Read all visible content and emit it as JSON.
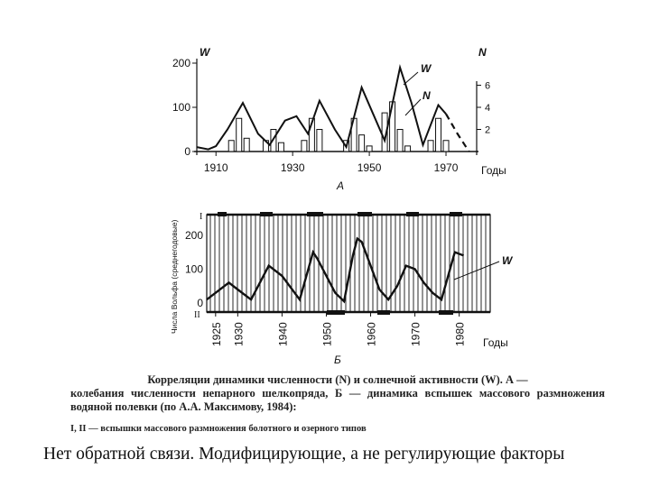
{
  "chart_data": [
    {
      "type": "line",
      "panel_label": "А",
      "y_left_label": "W",
      "y_right_label": "N",
      "x_unit_label": "Годы",
      "xlim": [
        1905,
        1978
      ],
      "ylim": [
        0,
        200
      ],
      "y2lim": [
        0,
        8
      ],
      "x_ticks": [
        1910,
        1930,
        1950,
        1970
      ],
      "y_ticks": [
        0,
        100,
        200
      ],
      "y2_ticks": [
        2,
        4,
        6
      ],
      "series": [
        {
          "name": "W",
          "style": "solid",
          "x": [
            1905,
            1908,
            1910,
            1913,
            1917,
            1921,
            1924,
            1928,
            1931,
            1934,
            1937,
            1941,
            1944,
            1948,
            1951,
            1954,
            1958,
            1961,
            1964,
            1968,
            1970
          ],
          "y": [
            10,
            5,
            12,
            50,
            110,
            40,
            15,
            70,
            80,
            40,
            115,
            50,
            10,
            145,
            85,
            25,
            190,
            110,
            15,
            105,
            85
          ]
        },
        {
          "name": "W-forecast",
          "style": "dashed",
          "x": [
            1970,
            1973,
            1976
          ],
          "y": [
            85,
            40,
            0
          ]
        },
        {
          "name": "N",
          "style": "bars",
          "x": [
            1914,
            1916,
            1918,
            1923,
            1925,
            1927,
            1933,
            1935,
            1937,
            1944,
            1946,
            1948,
            1950,
            1954,
            1956,
            1958,
            1960,
            1966,
            1968,
            1970
          ],
          "y": [
            1,
            3,
            1.2,
            1,
            2,
            0.8,
            1,
            3,
            2,
            1,
            3,
            1.5,
            0.5,
            3.5,
            4.5,
            2,
            0.5,
            1,
            3,
            1
          ]
        }
      ],
      "annotations": [
        "W",
        "N"
      ]
    },
    {
      "type": "line",
      "panel_label": "Б",
      "y_label": "Числа Вольфа (среднегодовые)",
      "x_unit_label": "Годы",
      "xlim": [
        1923,
        1987
      ],
      "ylim": [
        0,
        250
      ],
      "x_ticks": [
        "1925",
        "1930",
        "1940",
        "1950",
        "1960",
        "1970",
        "1980"
      ],
      "y_ticks": [
        0,
        100,
        200
      ],
      "band_labels": [
        "I",
        "II"
      ],
      "series": [
        {
          "name": "W",
          "x": [
            1923,
            1925,
            1928,
            1930,
            1933,
            1935,
            1937,
            1940,
            1944,
            1947,
            1948,
            1950,
            1952,
            1954,
            1956,
            1957,
            1958,
            1960,
            1962,
            1964,
            1966,
            1968,
            1970,
            1972,
            1974,
            1976,
            1979,
            1981
          ],
          "y": [
            10,
            30,
            60,
            40,
            10,
            60,
            110,
            80,
            10,
            150,
            130,
            80,
            30,
            5,
            140,
            190,
            180,
            110,
            40,
            10,
            50,
            110,
            100,
            60,
            30,
            10,
            150,
            140
          ]
        }
      ],
      "annotations": [
        "W"
      ]
    }
  ],
  "caption": {
    "line1": "Корреляции динамики численности (N) и солнечной активности (W). А —",
    "rest": "колебания численности непарного шелкопряда, Б — динамика вспышек массового размножения водяной полевки (по А.А. Максимову, 1984):",
    "note": "I, II — вспышки массового размножения болотного и озерного типов"
  },
  "slide_text": "Нет обратной связи. Модифицирующие, а не регулирующие факторы"
}
